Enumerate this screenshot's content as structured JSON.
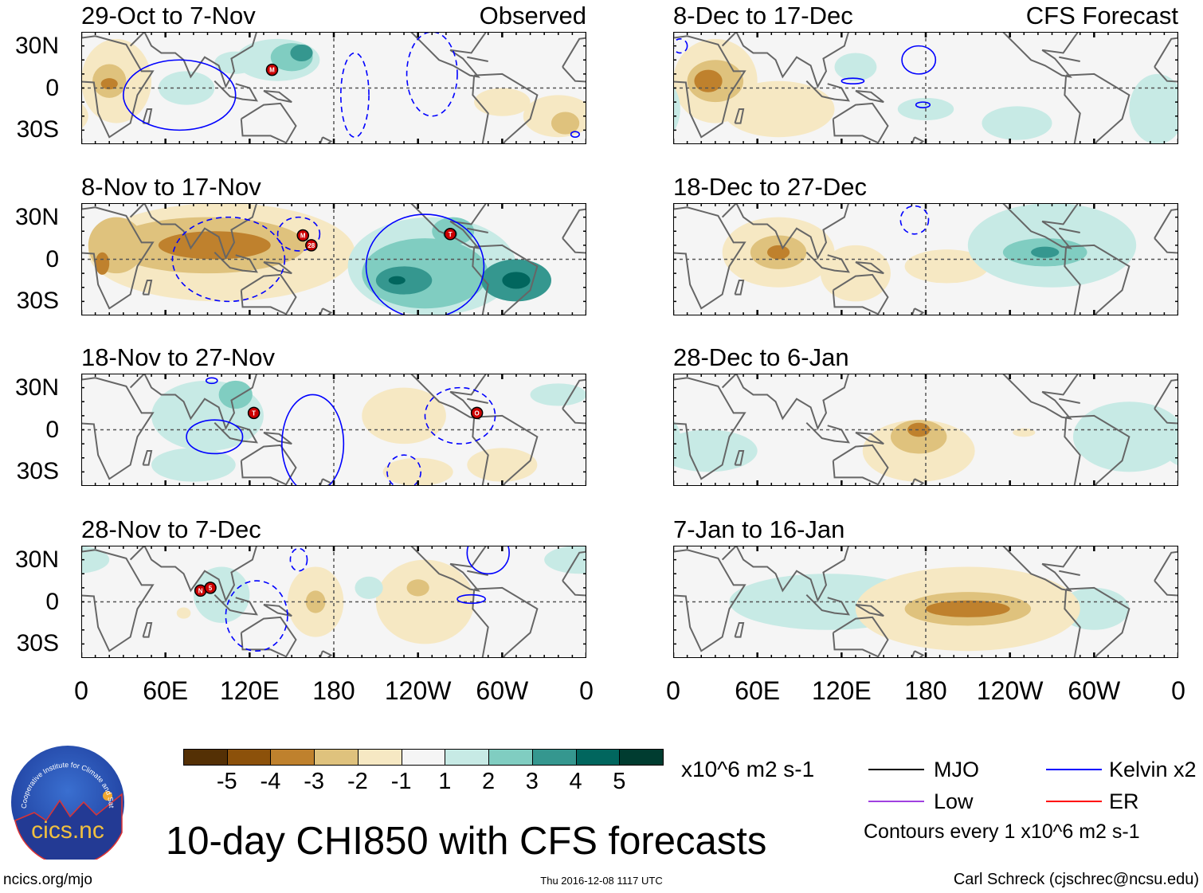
{
  "colors": {
    "-5": "#543005",
    "-4": "#8c510a",
    "-3": "#bf812d",
    "-2": "#dfc27d",
    "-1": "#f6e8c3",
    "0": "#f5f5f5",
    "1": "#c7eae5",
    "2": "#80cdc1",
    "3": "#35978f",
    "4": "#01665e",
    "5": "#003c30",
    "kelvin": "#0000ff",
    "mjo": "#000000",
    "low": "#a040e0",
    "er": "#ff0000",
    "storm": "#cc0000",
    "coast": "#666666"
  },
  "column_labels": {
    "observed": "Observed",
    "forecast": "CFS Forecast"
  },
  "y_ticks": [
    "30N",
    "0",
    "30S"
  ],
  "x_ticks": [
    "0",
    "60E",
    "120E",
    "180",
    "120W",
    "60W",
    "0"
  ],
  "panels": [
    {
      "title": "29-Oct to 7-Nov",
      "column": "observed",
      "corner": "Observed",
      "blobs": [
        [
          25,
          5,
          25,
          30,
          -1
        ],
        [
          20,
          5,
          12,
          12,
          -2
        ],
        [
          20,
          3,
          6,
          4,
          -3
        ],
        [
          75,
          0,
          20,
          12,
          1
        ],
        [
          110,
          18,
          15,
          8,
          1
        ],
        [
          140,
          20,
          30,
          15,
          1
        ],
        [
          150,
          22,
          15,
          10,
          2
        ],
        [
          157,
          25,
          8,
          6,
          3
        ],
        [
          300,
          -10,
          20,
          10,
          -1
        ],
        [
          340,
          -20,
          25,
          15,
          -1
        ],
        [
          345,
          -25,
          10,
          8,
          -2
        ]
      ],
      "kelvin": [
        [
          70,
          -5,
          40,
          25,
          0
        ],
        [
          195,
          -5,
          10,
          30,
          1
        ],
        [
          250,
          10,
          18,
          30,
          1
        ],
        [
          352,
          -33,
          3,
          2,
          0
        ]
      ],
      "storms": [
        [
          136,
          13,
          "M"
        ]
      ]
    },
    {
      "title": "8-Nov to 17-Nov",
      "column": "observed",
      "blobs": [
        [
          100,
          5,
          95,
          35,
          -1
        ],
        [
          90,
          10,
          70,
          20,
          -2
        ],
        [
          95,
          10,
          40,
          10,
          -3
        ],
        [
          25,
          10,
          20,
          20,
          -2
        ],
        [
          15,
          -3,
          5,
          8,
          -3
        ],
        [
          250,
          -5,
          60,
          35,
          1
        ],
        [
          245,
          -10,
          45,
          25,
          2
        ],
        [
          230,
          -15,
          20,
          10,
          3
        ],
        [
          225,
          -15,
          6,
          3,
          4
        ],
        [
          310,
          -15,
          25,
          15,
          3
        ],
        [
          310,
          -15,
          10,
          6,
          4
        ],
        [
          265,
          20,
          15,
          10,
          2
        ],
        [
          263,
          18,
          5,
          4,
          3
        ]
      ],
      "kelvin": [
        [
          245,
          -5,
          42,
          37,
          0
        ],
        [
          105,
          0,
          40,
          30,
          1
        ],
        [
          155,
          18,
          15,
          12,
          1
        ]
      ],
      "storms": [
        [
          158,
          17,
          "M"
        ],
        [
          164,
          10,
          "28"
        ],
        [
          263,
          18,
          "T"
        ]
      ]
    },
    {
      "title": "18-Nov to 27-Nov",
      "column": "observed",
      "blobs": [
        [
          90,
          10,
          40,
          25,
          1
        ],
        [
          110,
          25,
          12,
          10,
          2
        ],
        [
          80,
          -25,
          30,
          12,
          1
        ],
        [
          230,
          10,
          30,
          20,
          -1
        ],
        [
          240,
          -30,
          25,
          10,
          -1
        ],
        [
          300,
          -25,
          25,
          12,
          -1
        ],
        [
          340,
          25,
          20,
          8,
          1
        ]
      ],
      "kelvin": [
        [
          95,
          -5,
          20,
          12,
          0
        ],
        [
          165,
          -10,
          22,
          35,
          0
        ],
        [
          93,
          35,
          4,
          2,
          0
        ],
        [
          270,
          10,
          25,
          20,
          1
        ],
        [
          230,
          -30,
          12,
          12,
          1
        ]
      ],
      "storms": [
        [
          123,
          12,
          "T"
        ],
        [
          282,
          12,
          "O"
        ]
      ]
    },
    {
      "title": "28-Nov to 7-Dec",
      "column": "observed",
      "blobs": [
        [
          167,
          0,
          20,
          25,
          -1
        ],
        [
          167,
          0,
          7,
          8,
          -2
        ],
        [
          245,
          0,
          35,
          30,
          -1
        ],
        [
          240,
          10,
          8,
          6,
          -2
        ],
        [
          100,
          5,
          20,
          20,
          1
        ],
        [
          355,
          30,
          25,
          10,
          1
        ],
        [
          205,
          10,
          10,
          8,
          1
        ],
        [
          73,
          -8,
          5,
          4,
          -1
        ]
      ],
      "kelvin": [
        [
          125,
          -10,
          22,
          25,
          1
        ],
        [
          155,
          30,
          6,
          8,
          1
        ],
        [
          278,
          2,
          10,
          3,
          0
        ],
        [
          290,
          35,
          15,
          15,
          0
        ]
      ],
      "storms": [
        [
          85,
          8,
          "N"
        ],
        [
          92,
          10,
          "5"
        ]
      ]
    },
    {
      "title": "8-Dec to 17-Dec",
      "column": "forecast",
      "corner": "CFS Forecast",
      "blobs": [
        [
          30,
          5,
          30,
          30,
          -1
        ],
        [
          30,
          5,
          20,
          15,
          -2
        ],
        [
          25,
          5,
          10,
          8,
          -3
        ],
        [
          75,
          -15,
          40,
          20,
          -1
        ],
        [
          130,
          15,
          15,
          10,
          1
        ],
        [
          180,
          -15,
          20,
          8,
          1
        ],
        [
          245,
          -25,
          25,
          12,
          1
        ],
        [
          345,
          -15,
          20,
          25,
          1
        ]
      ],
      "kelvin": [
        [
          175,
          20,
          12,
          10,
          0
        ],
        [
          128,
          5,
          8,
          2,
          0
        ],
        [
          178,
          -12,
          5,
          2,
          0
        ],
        [
          5,
          30,
          5,
          5,
          1
        ]
      ],
      "storms": []
    },
    {
      "title": "18-Dec to 27-Dec",
      "column": "forecast",
      "blobs": [
        [
          75,
          5,
          40,
          25,
          -1
        ],
        [
          75,
          5,
          20,
          12,
          -2
        ],
        [
          75,
          5,
          8,
          5,
          -3
        ],
        [
          130,
          -10,
          25,
          20,
          -1
        ],
        [
          195,
          -5,
          30,
          12,
          -1
        ],
        [
          270,
          10,
          60,
          30,
          1
        ],
        [
          265,
          5,
          30,
          10,
          2
        ],
        [
          265,
          5,
          10,
          4,
          3
        ]
      ],
      "kelvin": [
        [
          172,
          28,
          10,
          10,
          1
        ]
      ],
      "storms": []
    },
    {
      "title": "28-Dec to 6-Jan",
      "column": "forecast",
      "blobs": [
        [
          175,
          -15,
          40,
          22,
          -1
        ],
        [
          175,
          -5,
          20,
          12,
          -2
        ],
        [
          175,
          0,
          8,
          5,
          -3
        ],
        [
          25,
          -15,
          35,
          15,
          1
        ],
        [
          325,
          -5,
          40,
          25,
          1
        ],
        [
          250,
          -2,
          8,
          3,
          -1
        ]
      ],
      "kelvin": [],
      "storms": []
    },
    {
      "title": "7-Jan to 16-Jan",
      "column": "forecast",
      "blobs": [
        [
          110,
          0,
          70,
          20,
          1
        ],
        [
          300,
          -5,
          25,
          15,
          1
        ],
        [
          210,
          -5,
          80,
          30,
          -1
        ],
        [
          210,
          -5,
          45,
          12,
          -2
        ],
        [
          210,
          -5,
          30,
          6,
          -3
        ]
      ],
      "kelvin": [],
      "storms": []
    }
  ],
  "colorbar": {
    "levels": [
      "-5",
      "-4",
      "-3",
      "-2",
      "-1",
      "0",
      "1",
      "2",
      "3",
      "4",
      "5"
    ],
    "labels": [
      "-5",
      "-4",
      "-3",
      "-2",
      "-1",
      "1",
      "2",
      "3",
      "4",
      "5"
    ],
    "units": "x10^6 m2 s-1"
  },
  "legend": {
    "mjo": "MJO",
    "kelvin": "Kelvin x2",
    "low": "Low",
    "er": "ER",
    "contours": "Contours every 1 x10^6 m2 s-1"
  },
  "title": "10-day CHI850 with CFS forecasts",
  "logo": {
    "text": "cics.nc",
    "ring_text": "Cooperative Institute for Climate and Satellites"
  },
  "footer": {
    "url": "ncics.org/mjo",
    "timestamp": "Thu 2016-12-08 1117 UTC",
    "author": "Carl Schreck (cjschrec@ncsu.edu)"
  }
}
